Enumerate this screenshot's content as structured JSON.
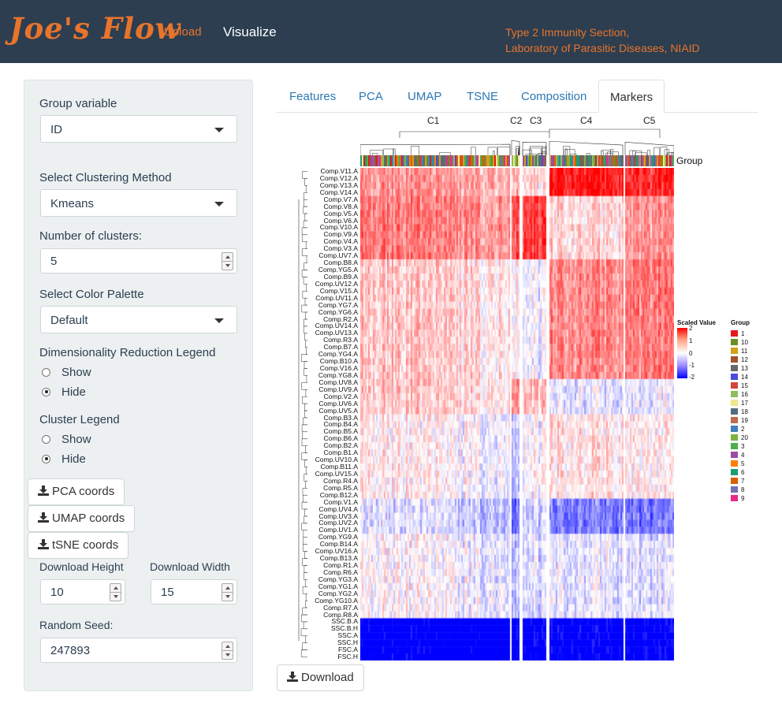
{
  "app": {
    "brand": "Joe's Flow",
    "nav": {
      "upload": "Upload",
      "visualize": "Visualize"
    },
    "org_line1": "Type 2 Immunity Section,",
    "org_line2": "Laboratory of Parasitic Diseases, NIAID",
    "colors": {
      "navbar": "#2c3e50",
      "accent": "#e8742c",
      "sidebar": "#ecf0f1",
      "link": "#2c78b4"
    }
  },
  "sidebar": {
    "group_variable": {
      "label": "Group variable",
      "value": "ID"
    },
    "clustering": {
      "label": "Select Clustering Method",
      "value": "Kmeans"
    },
    "num_clusters": {
      "label": "Number of clusters:",
      "value": "5"
    },
    "palette": {
      "label": "Select Color Palette",
      "value": "Default"
    },
    "dimred_legend": {
      "label": "Dimensionality Reduction Legend",
      "options": [
        "Show",
        "Hide"
      ],
      "selected": "Hide"
    },
    "cluster_legend": {
      "label": "Cluster Legend",
      "options": [
        "Show",
        "Hide"
      ],
      "selected": "Hide"
    },
    "buttons": {
      "pca": "PCA coords",
      "umap": "UMAP coords",
      "tsne": "tSNE coords"
    },
    "download_height": {
      "label": "Download Height",
      "value": "10"
    },
    "download_width": {
      "label": "Download Width",
      "value": "15"
    },
    "random_seed": {
      "label": "Random Seed:",
      "value": "247893"
    }
  },
  "tabs": [
    "Features",
    "PCA",
    "UMAP",
    "TSNE",
    "Composition",
    "Markers"
  ],
  "active_tab": "Markers",
  "download_label": "Download",
  "heatmap": {
    "clusters": [
      "C1",
      "C2",
      "C3",
      "C4",
      "C5"
    ],
    "group_annotation_label": "Group",
    "rows": [
      "Comp.V11.A",
      "Comp.V12.A",
      "Comp.V13.A",
      "Comp.V14.A",
      "Comp.V7.A",
      "Comp.V8.A",
      "Comp.V5.A",
      "Comp.V6.A",
      "Comp.V10.A",
      "Comp.V9.A",
      "Comp.V4.A",
      "Comp.V3.A",
      "Comp.UV7.A",
      "Comp.B8.A",
      "Comp.YG5.A",
      "Comp.B9.A",
      "Comp.UV12.A",
      "Comp.V15.A",
      "Comp.UV11.A",
      "Comp.YG7.A",
      "Comp.YG6.A",
      "Comp.R2.A",
      "Comp.UV14.A",
      "Comp.UV13.A",
      "Comp.R3.A",
      "Comp.B7.A",
      "Comp.YG4.A",
      "Comp.B10.A",
      "Comp.V16.A",
      "Comp.YG8.A",
      "Comp.UV8.A",
      "Comp.UV9.A",
      "Comp.V2.A",
      "Comp.UV6.A",
      "Comp.UV5.A",
      "Comp.B3.A",
      "Comp.B4.A",
      "Comp.B5.A",
      "Comp.B6.A",
      "Comp.B2.A",
      "Comp.B1.A",
      "Comp.UV10.A",
      "Comp.B11.A",
      "Comp.UV15.A",
      "Comp.R4.A",
      "Comp.R5.A",
      "Comp.B12.A",
      "Comp.V1.A",
      "Comp.UV4.A",
      "Comp.UV3.A",
      "Comp.UV2.A",
      "Comp.UV1.A",
      "Comp.YG9.A",
      "Comp.B14.A",
      "Comp.UV16.A",
      "Comp.B13.A",
      "Comp.R1.A",
      "Comp.R6.A",
      "Comp.YG3.A",
      "Comp.YG1.A",
      "Comp.YG2.A",
      "Comp.YG10.A",
      "Comp.R7.A",
      "Comp.R8.A",
      "SSC.B.A",
      "SSC.B.H",
      "SSC.A",
      "SSC.H",
      "FSC.A",
      "FSC.H"
    ],
    "scale_legend": {
      "title": "Scaled Value",
      "ticks": [
        "2",
        "1",
        "0",
        "-1",
        "-2"
      ]
    },
    "group_legend": {
      "title": "Group",
      "items": [
        {
          "label": "1",
          "color": "#e41a1c"
        },
        {
          "label": "10",
          "color": "#6b8e23"
        },
        {
          "label": "11",
          "color": "#d4a017"
        },
        {
          "label": "12",
          "color": "#a0522d"
        },
        {
          "label": "13",
          "color": "#696969"
        },
        {
          "label": "14",
          "color": "#4b4bdc"
        },
        {
          "label": "15",
          "color": "#d2453a"
        },
        {
          "label": "16",
          "color": "#8fbc5a"
        },
        {
          "label": "17",
          "color": "#f0e68c"
        },
        {
          "label": "18",
          "color": "#556b7f"
        },
        {
          "label": "19",
          "color": "#c06a4a"
        },
        {
          "label": "2",
          "color": "#3f7fbf"
        },
        {
          "label": "20",
          "color": "#7cb342"
        },
        {
          "label": "3",
          "color": "#4daf4a"
        },
        {
          "label": "4",
          "color": "#984ea3"
        },
        {
          "label": "5",
          "color": "#ff7f00"
        },
        {
          "label": "6",
          "color": "#1b9e77"
        },
        {
          "label": "7",
          "color": "#d95f02"
        },
        {
          "label": "8",
          "color": "#7570b3"
        },
        {
          "label": "9",
          "color": "#e7298a"
        }
      ]
    }
  }
}
